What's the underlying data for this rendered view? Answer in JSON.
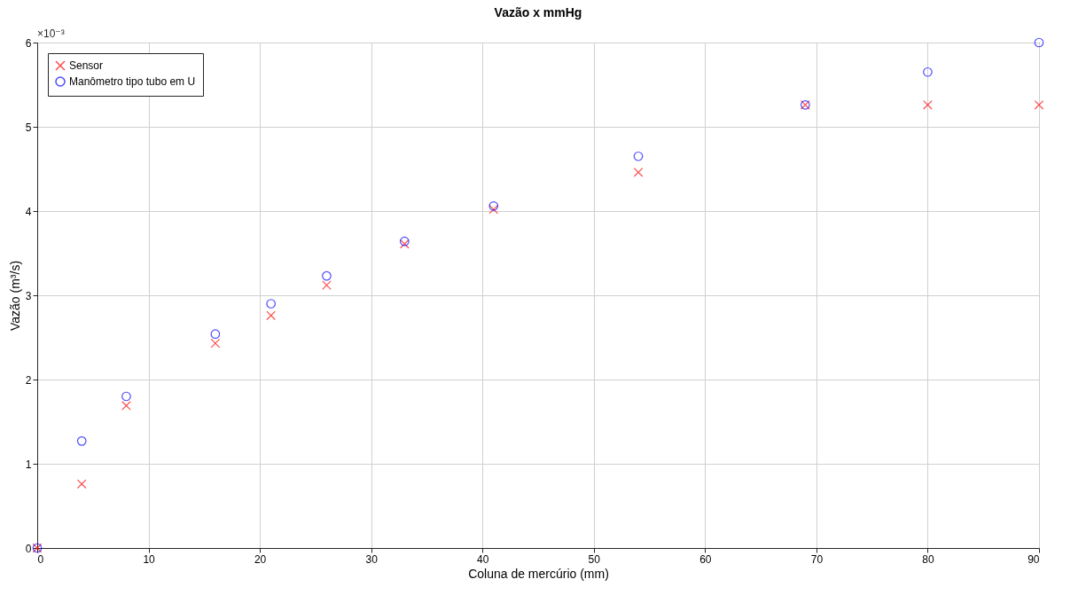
{
  "chart_data": {
    "type": "scatter",
    "title": "Vazão x mmHg",
    "xlabel": "Coluna de mercúrio (mm)",
    "ylabel": "Vazão (m³/s)",
    "annotations": [
      "×10⁻³"
    ],
    "xlim": [
      0,
      90
    ],
    "xticks": [
      0,
      10,
      20,
      30,
      40,
      50,
      60,
      70,
      80,
      90
    ],
    "ylim": [
      0,
      6
    ],
    "yticks": [
      0,
      1,
      2,
      3,
      4,
      5,
      6
    ],
    "grid": true,
    "legend": "top left",
    "series": [
      {
        "name": "Sensor",
        "color": "#ff0000",
        "marker": "cross",
        "x": [
          0,
          4,
          8,
          16,
          21,
          26,
          33,
          41,
          54,
          69,
          80,
          90
        ],
        "values": [
          0,
          0.76,
          1.69,
          2.43,
          2.76,
          3.12,
          3.61,
          4.02,
          4.46,
          5.26,
          5.26,
          5.26
        ]
      },
      {
        "name": "Manômetro tipo tubo em U",
        "color": "#0000ff",
        "marker": "circle",
        "x": [
          0,
          4,
          8,
          16,
          21,
          26,
          33,
          41,
          54,
          69,
          80,
          90
        ],
        "values": [
          0,
          1.27,
          1.8,
          2.54,
          2.9,
          3.23,
          3.64,
          4.06,
          4.65,
          5.26,
          5.65,
          6.0
        ]
      }
    ]
  }
}
